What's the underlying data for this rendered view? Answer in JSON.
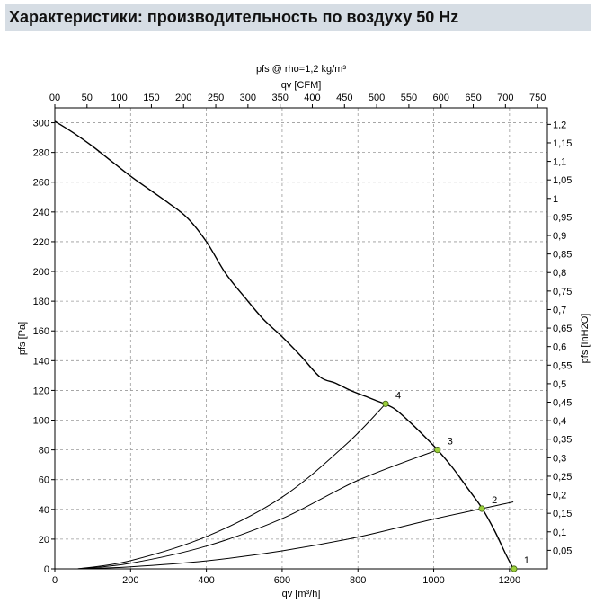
{
  "header": {
    "title": "Характеристики: производительность по воздуху 50 Hz"
  },
  "chart_data": {
    "type": "line",
    "title": "pfs @ rho=1,2 kg/m³",
    "xlabel": "qv [m³/h]",
    "ylabel": "pfs [Pa]",
    "x2label": "qv [CFM]",
    "y2label": "pfs [InH2O]",
    "xlim": [
      0,
      1300
    ],
    "ylim": [
      0,
      310
    ],
    "x_ticks": [
      0,
      200,
      400,
      600,
      800,
      1000,
      1200
    ],
    "x_tick_labels": [
      "0",
      "200",
      "400",
      "600",
      "800",
      "1000",
      "1200"
    ],
    "y_ticks": [
      0,
      20,
      40,
      60,
      80,
      100,
      120,
      140,
      160,
      180,
      200,
      220,
      240,
      260,
      280,
      300
    ],
    "y_tick_labels": [
      "0",
      "20",
      "40",
      "60",
      "80",
      "100",
      "120",
      "140",
      "160",
      "180",
      "200",
      "220",
      "240",
      "260",
      "280",
      "300"
    ],
    "x2_ticks": [
      0,
      50,
      100,
      150,
      200,
      250,
      300,
      350,
      400,
      450,
      500,
      550,
      600,
      650,
      700,
      750
    ],
    "x2_tick_labels": [
      "00",
      "50",
      "100",
      "150",
      "200",
      "250",
      "300",
      "350",
      "400",
      "450",
      "500",
      "550",
      "600",
      "650",
      "700",
      "750"
    ],
    "y2_ticks": [
      0.05,
      0.1,
      0.15,
      0.2,
      0.25,
      0.3,
      0.35,
      0.4,
      0.45,
      0.5,
      0.55,
      0.6,
      0.65,
      0.7,
      0.75,
      0.8,
      0.85,
      0.9,
      0.95,
      1.0,
      1.05,
      1.1,
      1.15,
      1.2
    ],
    "y2_tick_labels": [
      "0,05",
      "0,1",
      "0,15",
      "0,2",
      "0,25",
      "0,3",
      "0,35",
      "0,4",
      "0,45",
      "0,5",
      "0,55",
      "0,6",
      "0,65",
      "0,7",
      "0,75",
      "0,8",
      "0,85",
      "0,9",
      "0,95",
      "1",
      "1,05",
      "1,1",
      "1,15",
      "1,2"
    ],
    "grid": true,
    "fan_curve": {
      "x": [
        0,
        50,
        100,
        150,
        200,
        250,
        300,
        350,
        400,
        450,
        500,
        550,
        600,
        650,
        700,
        740,
        780,
        820,
        850,
        870,
        900,
        940,
        980,
        1010,
        1050,
        1090,
        1127,
        1160,
        1190,
        1210
      ],
      "y": [
        301,
        293,
        284,
        274,
        264,
        255,
        246,
        236,
        220,
        199,
        183,
        168,
        156,
        143,
        129,
        125,
        120,
        116,
        113,
        111,
        107,
        98,
        88,
        80,
        68,
        54,
        41,
        26,
        10,
        0
      ]
    },
    "system_curves": [
      {
        "x": [
          60,
          200,
          400,
          600,
          800,
          1000,
          1210
        ],
        "y": [
          0,
          1.4,
          5.4,
          12.1,
          21.4,
          33.5,
          45
        ]
      },
      {
        "x": [
          60,
          200,
          400,
          600,
          800,
          1010
        ],
        "y": [
          0,
          3.8,
          15.3,
          33.8,
          59.5,
          80
        ]
      },
      {
        "x": [
          60,
          200,
          400,
          600,
          770,
          873
        ],
        "y": [
          0,
          5.5,
          21.7,
          48.2,
          84,
          111
        ]
      }
    ],
    "operating_points": [
      {
        "label": "1",
        "x": 1212,
        "y": 0
      },
      {
        "label": "2",
        "x": 1127,
        "y": 40.5
      },
      {
        "label": "3",
        "x": 1010,
        "y": 80
      },
      {
        "label": "4",
        "x": 873,
        "y": 111
      }
    ]
  }
}
